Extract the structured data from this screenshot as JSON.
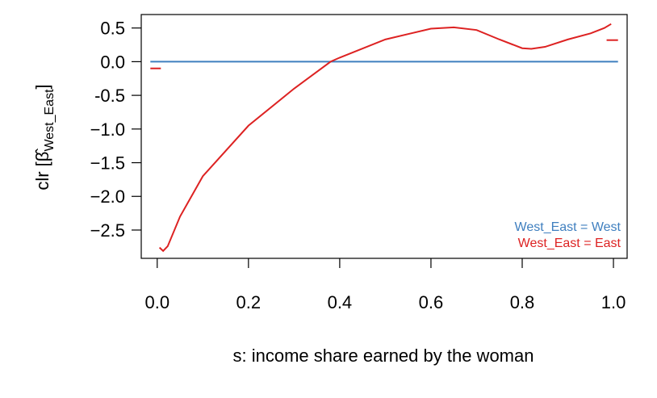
{
  "chart_data": {
    "type": "line",
    "xlabel": "s: income share earned by the woman",
    "ylabel": {
      "main": "clr [β̂",
      "sub": "West_East",
      "close": "]"
    },
    "xlim": [
      -0.035,
      1.03
    ],
    "ylim": [
      -2.92,
      0.7
    ],
    "xticks": [
      {
        "value": 0,
        "label": "0.0"
      },
      0.2,
      0.4,
      0.6,
      0.8,
      {
        "value": 1,
        "label": "1.0"
      }
    ],
    "yticks": [
      0.5,
      {
        "value": 0,
        "label": "0.0"
      },
      -0.5,
      {
        "value": -1,
        "label": "−1.0"
      },
      {
        "value": -1.5,
        "label": "−1.5"
      },
      {
        "value": -2,
        "label": "−2.0"
      },
      {
        "value": -2.5,
        "label": "−2.5"
      }
    ],
    "legend": "bottom-right",
    "series": [
      {
        "name": "West_East = West",
        "color": "#3f7fbf",
        "x": [
          -0.015,
          1.01
        ],
        "values": [
          0,
          0
        ]
      },
      {
        "name": "West_East = East",
        "color": "#dd2222",
        "x": [
          -0.015,
          0.008,
          0.009,
          0.005,
          0.013,
          0.023,
          0.05,
          0.1,
          0.2,
          0.3,
          0.38,
          0.4,
          0.5,
          0.6,
          0.65,
          0.7,
          0.75,
          0.8,
          0.82,
          0.85,
          0.9,
          0.95,
          0.98,
          0.995,
          0.996,
          0.985,
          1.01
        ],
        "values": [
          -0.1,
          -0.1,
          null,
          -2.76,
          -2.81,
          -2.74,
          -2.3,
          -1.7,
          -0.95,
          -0.4,
          0.0,
          0.06,
          0.33,
          0.49,
          0.51,
          0.47,
          0.33,
          0.2,
          0.19,
          0.22,
          0.33,
          0.42,
          0.5,
          0.56,
          null,
          0.32,
          0.32
        ]
      }
    ]
  }
}
